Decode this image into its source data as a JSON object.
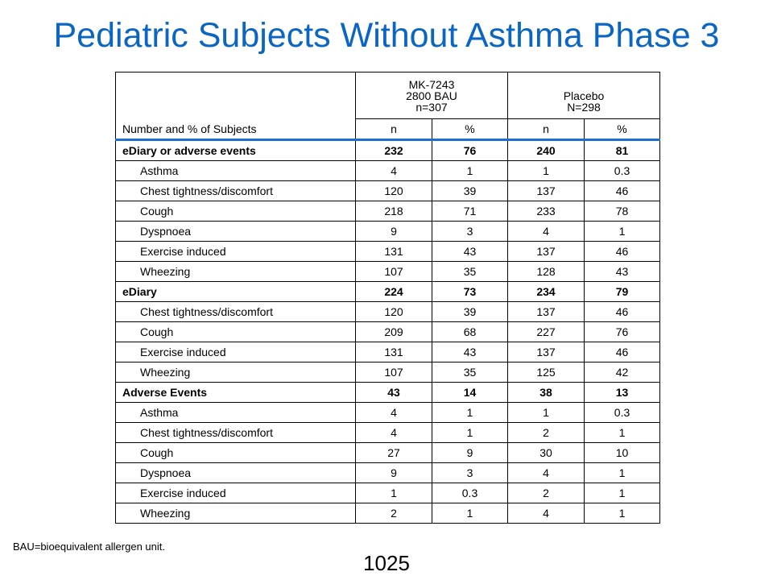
{
  "title": "Pediatric Subjects Without Asthma Phase 3",
  "table": {
    "row_header": "Number and % of Subjects",
    "groups": [
      {
        "line1": "MK-7243",
        "line2": "2800 BAU",
        "line3": "n=307"
      },
      {
        "line1": "",
        "line2": "Placebo",
        "line3": "N=298"
      }
    ],
    "subheaders": [
      "n",
      "%",
      "n",
      "%"
    ],
    "rows": [
      {
        "label": "eDiary or adverse events",
        "bold": true,
        "indent": false,
        "values": [
          "232",
          "76",
          "240",
          "81"
        ]
      },
      {
        "label": "Asthma",
        "bold": false,
        "indent": true,
        "values": [
          "4",
          "1",
          "1",
          "0.3"
        ]
      },
      {
        "label": "Chest tightness/discomfort",
        "bold": false,
        "indent": true,
        "values": [
          "120",
          "39",
          "137",
          "46"
        ]
      },
      {
        "label": "Cough",
        "bold": false,
        "indent": true,
        "values": [
          "218",
          "71",
          "233",
          "78"
        ]
      },
      {
        "label": "Dyspnoea",
        "bold": false,
        "indent": true,
        "values": [
          "9",
          "3",
          "4",
          "1"
        ]
      },
      {
        "label": "Exercise induced",
        "bold": false,
        "indent": true,
        "values": [
          "131",
          "43",
          "137",
          "46"
        ]
      },
      {
        "label": "Wheezing",
        "bold": false,
        "indent": true,
        "values": [
          "107",
          "35",
          "128",
          "43"
        ]
      },
      {
        "label": "eDiary",
        "bold": true,
        "indent": false,
        "values": [
          "224",
          "73",
          "234",
          "79"
        ]
      },
      {
        "label": "Chest tightness/discomfort",
        "bold": false,
        "indent": true,
        "values": [
          "120",
          "39",
          "137",
          "46"
        ]
      },
      {
        "label": "Cough",
        "bold": false,
        "indent": true,
        "values": [
          "209",
          "68",
          "227",
          "76"
        ]
      },
      {
        "label": "Exercise induced",
        "bold": false,
        "indent": true,
        "values": [
          "131",
          "43",
          "137",
          "46"
        ]
      },
      {
        "label": "Wheezing",
        "bold": false,
        "indent": true,
        "values": [
          "107",
          "35",
          "125",
          "42"
        ]
      },
      {
        "label": "Adverse Events",
        "bold": true,
        "indent": false,
        "values": [
          "43",
          "14",
          "38",
          "13"
        ]
      },
      {
        "label": "Asthma",
        "bold": false,
        "indent": true,
        "values": [
          "4",
          "1",
          "1",
          "0.3"
        ]
      },
      {
        "label": "Chest tightness/discomfort",
        "bold": false,
        "indent": true,
        "values": [
          "4",
          "1",
          "2",
          "1"
        ]
      },
      {
        "label": "Cough",
        "bold": false,
        "indent": true,
        "values": [
          "27",
          "9",
          "30",
          "10"
        ]
      },
      {
        "label": "Dyspnoea",
        "bold": false,
        "indent": true,
        "values": [
          "9",
          "3",
          "4",
          "1"
        ]
      },
      {
        "label": "Exercise induced",
        "bold": false,
        "indent": true,
        "values": [
          "1",
          "0.3",
          "2",
          "1"
        ]
      },
      {
        "label": "Wheezing",
        "bold": false,
        "indent": true,
        "values": [
          "2",
          "1",
          "4",
          "1"
        ]
      }
    ]
  },
  "footnote": "BAU=bioequivalent allergen unit.",
  "page_number": "1025",
  "colors": {
    "title": "#0a66c2",
    "header_rule": "#1f6fd1"
  }
}
